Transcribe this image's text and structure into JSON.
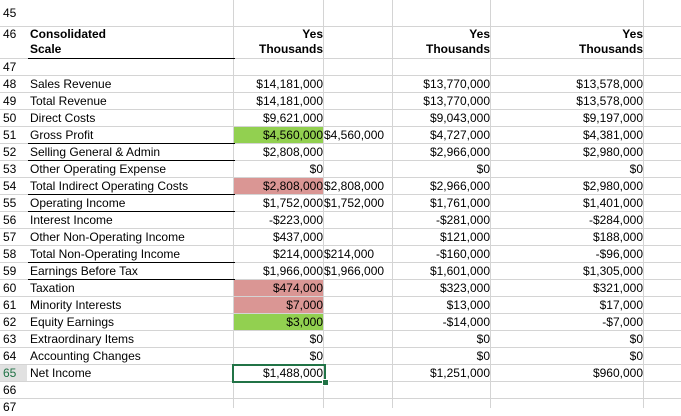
{
  "header_rows": {
    "r45": "45",
    "r46": "46",
    "r47": "47",
    "r66": "66",
    "r67": "67",
    "title_line1": "Consolidated",
    "title_line2": "Scale",
    "col1_line1": "Yes",
    "col1_line2": "Thousands",
    "col3_line1": "Yes",
    "col3_line2": "Thousands",
    "col4_line1": "Yes",
    "col4_line2": "Thousands"
  },
  "rows": [
    {
      "n": "48",
      "label": "Sales Revenue",
      "c1": "$14,181,000",
      "c2": "",
      "c3": "$13,770,000",
      "c4": "$13,578,000"
    },
    {
      "n": "49",
      "label": "Total Revenue",
      "c1": "$14,181,000",
      "c2": "",
      "c3": "$13,770,000",
      "c4": "$13,578,000"
    },
    {
      "n": "50",
      "label": "Direct Costs",
      "c1": "$9,621,000",
      "c2": "",
      "c3": "$9,043,000",
      "c4": "$9,197,000"
    },
    {
      "n": "51",
      "label": "Gross Profit",
      "c1": "$4,560,000",
      "c2": "$4,560,000",
      "c3": "$4,727,000",
      "c4": "$4,381,000"
    },
    {
      "n": "52",
      "label": "Selling General & Admin",
      "c1": "$2,808,000",
      "c2": "",
      "c3": "$2,966,000",
      "c4": "$2,980,000"
    },
    {
      "n": "53",
      "label": "Other Operating Expense",
      "c1": "$0",
      "c2": "",
      "c3": "$0",
      "c4": "$0"
    },
    {
      "n": "54",
      "label": "Total Indirect Operating Costs",
      "c1": "$2,808,000",
      "c2": "$2,808,000",
      "c3": "$2,966,000",
      "c4": "$2,980,000"
    },
    {
      "n": "55",
      "label": "Operating Income",
      "c1": "$1,752,000",
      "c2": "$1,752,000",
      "c3": "$1,761,000",
      "c4": "$1,401,000"
    },
    {
      "n": "56",
      "label": "Interest Income",
      "c1": "-$223,000",
      "c2": "",
      "c3": "-$281,000",
      "c4": "-$284,000"
    },
    {
      "n": "57",
      "label": "Other Non-Operating Income",
      "c1": "$437,000",
      "c2": "",
      "c3": "$121,000",
      "c4": "$188,000"
    },
    {
      "n": "58",
      "label": "Total Non-Operating Income",
      "c1": "$214,000",
      "c2": "$214,000",
      "c3": "-$160,000",
      "c4": "-$96,000"
    },
    {
      "n": "59",
      "label": "Earnings Before Tax",
      "c1": "$1,966,000",
      "c2": "$1,966,000",
      "c3": "$1,601,000",
      "c4": "$1,305,000"
    },
    {
      "n": "60",
      "label": "Taxation",
      "c1": "$474,000",
      "c2": "",
      "c3": "$323,000",
      "c4": "$321,000"
    },
    {
      "n": "61",
      "label": "Minority Interests",
      "c1": "$7,000",
      "c2": "",
      "c3": "$13,000",
      "c4": "$17,000"
    },
    {
      "n": "62",
      "label": "Equity Earnings",
      "c1": "$3,000",
      "c2": "",
      "c3": "-$14,000",
      "c4": "-$7,000"
    },
    {
      "n": "63",
      "label": "Extraordinary Items",
      "c1": "$0",
      "c2": "",
      "c3": "$0",
      "c4": "$0"
    },
    {
      "n": "64",
      "label": "Accounting Changes",
      "c1": "$0",
      "c2": "",
      "c3": "$0",
      "c4": "$0"
    },
    {
      "n": "65",
      "label": "Net Income",
      "c1": "$1,488,000",
      "c2": "",
      "c3": "$1,251,000",
      "c4": "$960,000"
    }
  ],
  "colors": {
    "green_fill": "#92d050",
    "red_fill": "#da9694",
    "selection": "#217346"
  }
}
